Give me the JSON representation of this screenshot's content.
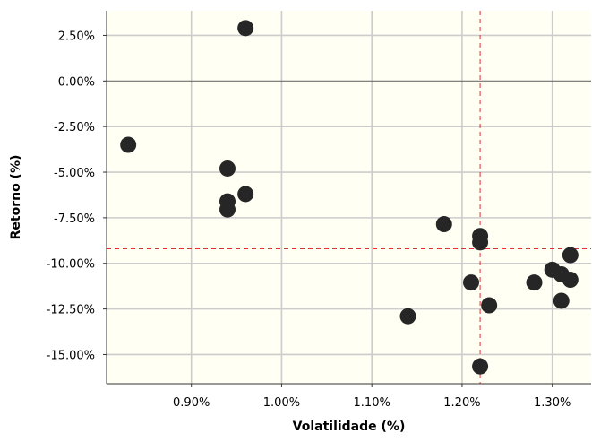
{
  "chart_data": {
    "type": "scatter",
    "title": "",
    "xlabel": "Volatilidade (%)",
    "ylabel": "Retorno (%)",
    "xlim": [
      0.806,
      1.343
    ],
    "ylim": [
      -16.6,
      3.85
    ],
    "x_ticks": [
      0.9,
      1.0,
      1.1,
      1.2,
      1.3
    ],
    "x_tick_labels": [
      "0.90%",
      "1.00%",
      "1.10%",
      "1.20%",
      "1.30%"
    ],
    "y_ticks": [
      2.5,
      0.0,
      -2.5,
      -5.0,
      -7.5,
      -10.0,
      -12.5,
      -15.0
    ],
    "y_tick_labels": [
      "2.50%",
      "0.00%",
      "-2.50%",
      "-5.00%",
      "-7.50%",
      "-10.00%",
      "-12.50%",
      "-15.00%"
    ],
    "grid": true,
    "background": "#fffff4",
    "point_color": "#262626",
    "zero_line": 0.0,
    "reference_lines": {
      "x": 1.22,
      "y": -9.2,
      "color": "#e03030",
      "style": "dashed"
    },
    "points": [
      {
        "x": 0.83,
        "y": -3.5
      },
      {
        "x": 0.94,
        "y": -4.8
      },
      {
        "x": 0.94,
        "y": -6.6
      },
      {
        "x": 0.94,
        "y": -7.05
      },
      {
        "x": 0.96,
        "y": -6.2
      },
      {
        "x": 0.96,
        "y": 2.9
      },
      {
        "x": 1.14,
        "y": -12.9
      },
      {
        "x": 1.18,
        "y": -7.85
      },
      {
        "x": 1.21,
        "y": -11.05
      },
      {
        "x": 1.22,
        "y": -8.5
      },
      {
        "x": 1.22,
        "y": -8.85
      },
      {
        "x": 1.22,
        "y": -15.65
      },
      {
        "x": 1.23,
        "y": -12.3
      },
      {
        "x": 1.28,
        "y": -11.05
      },
      {
        "x": 1.3,
        "y": -10.35
      },
      {
        "x": 1.31,
        "y": -10.6
      },
      {
        "x": 1.31,
        "y": -12.05
      },
      {
        "x": 1.32,
        "y": -9.55
      },
      {
        "x": 1.32,
        "y": -10.9
      }
    ]
  }
}
